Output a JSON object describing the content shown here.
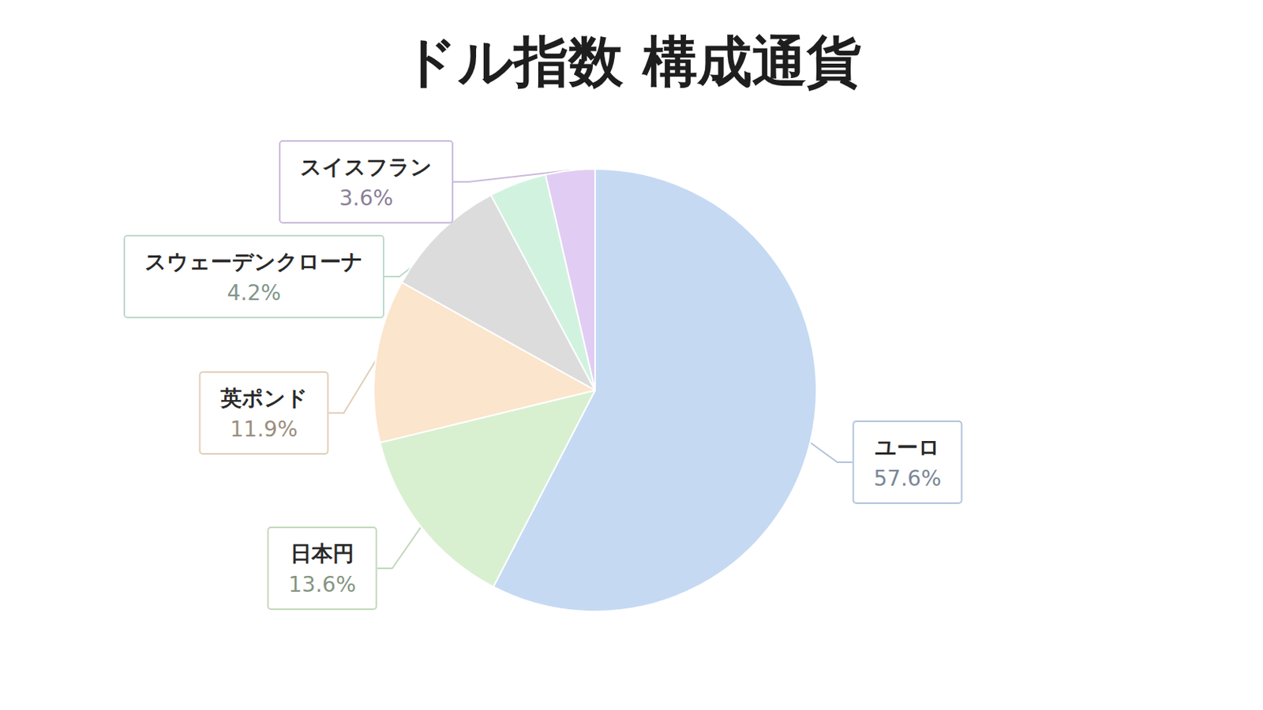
{
  "chart_data": {
    "type": "pie",
    "title": "ドル指数 構成通貨",
    "categories": [
      "ユーロ",
      "日本円",
      "英ポンド",
      null,
      "スウェーデンクローナ",
      "スイスフラン"
    ],
    "values": [
      57.6,
      13.6,
      11.9,
      9.1,
      4.2,
      3.6
    ],
    "value_labels": [
      "57.6%",
      "13.6%",
      "11.9%",
      null,
      "4.2%",
      "3.6%"
    ],
    "colors": [
      "#c5d9f3",
      "#d8f0d0",
      "#fbe5cc",
      "#dcdcdc",
      "#d2f2e0",
      "#e1cdf3"
    ],
    "data_labels": true
  }
}
